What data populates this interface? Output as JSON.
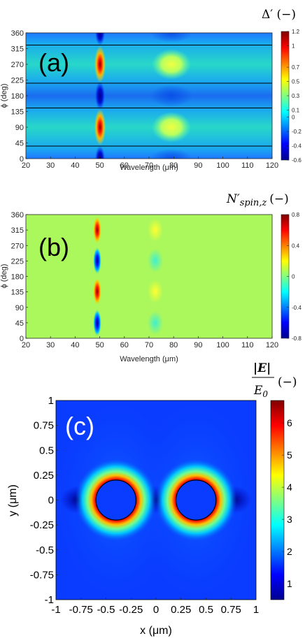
{
  "chart_data": [
    {
      "type": "heatmap",
      "panel_label": "(a)",
      "xlabel": "Wavelength (μm)",
      "ylabel": "ϕ (deg)",
      "xlim": [
        20,
        120
      ],
      "ylim": [
        0,
        360
      ],
      "x_ticks": [
        "20",
        "30",
        "40",
        "50",
        "60",
        "70",
        "80",
        "90",
        "100",
        "110",
        "120"
      ],
      "y_ticks": [
        "0",
        "45",
        "90",
        "135",
        "180",
        "225",
        "270",
        "315",
        "360"
      ],
      "colorbar_title": "Δ′ (−)",
      "colorbar_ticks": [
        "1.2",
        "1",
        "0.7",
        "0.5",
        "0.3",
        "0.1",
        "0",
        "-0.2",
        "-0.4",
        "-0.6"
      ],
      "colorbar_range": [
        -0.6,
        1.2
      ],
      "contour_phi_deg": [
        36,
        145,
        216,
        325
      ],
      "features": [
        {
          "wavelength": 49,
          "description": "sharp resonance, peak ≈ 1.2 near ϕ = 90/270 deg, minimum ≈ -0.6 near ϕ = 0/180/360 deg"
        },
        {
          "wavelength": 75,
          "description": "broad weaker resonance, ≈ 0.5 near ϕ = 90/270 deg"
        }
      ]
    },
    {
      "type": "heatmap",
      "panel_label": "(b)",
      "xlabel": "Wavelength (μm)",
      "ylabel": "ϕ (deg)",
      "xlim": [
        20,
        120
      ],
      "ylim": [
        0,
        360
      ],
      "x_ticks": [
        "20",
        "30",
        "40",
        "50",
        "60",
        "70",
        "80",
        "90",
        "100",
        "110",
        "120"
      ],
      "y_ticks": [
        "0",
        "45",
        "90",
        "135",
        "180",
        "225",
        "270",
        "315",
        "360"
      ],
      "colorbar_title_main": "N′",
      "colorbar_title_sub": "spin,z",
      "colorbar_title_tail": "(−)",
      "colorbar_ticks": [
        "0.8",
        "0.4",
        "0",
        "-0.4",
        "-0.8"
      ],
      "colorbar_range": [
        -0.8,
        0.8
      ],
      "features": [
        {
          "wavelength": 49,
          "description": "sharp lobes: positive ≈ 0.8 near ϕ = 135/315 deg, negative ≈ -0.8 near ϕ = 45/225 deg"
        },
        {
          "wavelength": 72,
          "description": "weak lobes ≈ ±0.3"
        }
      ]
    },
    {
      "type": "heatmap",
      "panel_label": "(c)",
      "xlabel": "x (μm)",
      "ylabel": "y (μm)",
      "xlim": [
        -1,
        1
      ],
      "ylim": [
        -1,
        1
      ],
      "x_ticks": [
        "-1",
        "-0.75",
        "-0.5",
        "-0.25",
        "0",
        "0.25",
        "0.5",
        "0.75",
        "1"
      ],
      "y_ticks": [
        "1",
        "0.75",
        "0.5",
        "0.25",
        "0",
        "-0.25",
        "-0.5",
        "-0.75",
        "-1"
      ],
      "colorbar_title_num": "|E|",
      "colorbar_title_den": "E",
      "colorbar_title_den_sub": "0",
      "colorbar_title_tail": "(−)",
      "colorbar_ticks": [
        "6",
        "5",
        "4",
        "3",
        "2",
        "1"
      ],
      "colorbar_range": [
        0.5,
        6.7
      ],
      "particles": [
        {
          "cx": -0.4,
          "cy": 0,
          "r": 0.2
        },
        {
          "cx": 0.4,
          "cy": 0,
          "r": 0.2
        }
      ]
    }
  ],
  "colors": {
    "cmap_jet": [
      "#00008f",
      "#0000ff",
      "#0080ff",
      "#00ffff",
      "#80ff80",
      "#ffff00",
      "#ff8000",
      "#ff0000",
      "#800000"
    ]
  }
}
